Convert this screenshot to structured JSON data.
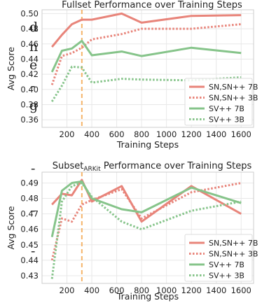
{
  "page_fragments": [
    "d",
    "n",
    "e",
    "-",
    "g",
    "-",
    "-",
    "-"
  ],
  "colors": {
    "salmon": "#e8847a",
    "green": "#86c48a",
    "marker": "#f5b46a",
    "grid": "#e8e8e8",
    "frame": "#cccccc"
  },
  "chart_data": [
    {
      "type": "line",
      "title": "Fullset Performance over Training Steps",
      "xlabel": "Training Steps",
      "ylabel": "Avg Score",
      "xlim": [
        0,
        1700
      ],
      "ylim": [
        0.35,
        0.505
      ],
      "xticks": [
        200,
        400,
        600,
        800,
        1000,
        1200,
        1400,
        1600
      ],
      "yticks": [
        0.36,
        0.38,
        0.4,
        0.42,
        0.44,
        0.46,
        0.48,
        0.5
      ],
      "grid": true,
      "legend_position": "bottom-right",
      "vline_x": 320,
      "series": [
        {
          "name": "SN,SN++ 7B",
          "color": "salmon",
          "style": "solid",
          "x": [
            80,
            160,
            240,
            320,
            400,
            640,
            800,
            1200,
            1600
          ],
          "y": [
            0.456,
            0.472,
            0.486,
            0.492,
            0.492,
            0.5,
            0.488,
            0.497,
            0.498
          ]
        },
        {
          "name": "SN,SN++ 3B",
          "color": "salmon",
          "style": "dotted",
          "x": [
            80,
            160,
            240,
            320,
            400,
            640,
            800,
            1200,
            1600
          ],
          "y": [
            0.406,
            0.444,
            0.448,
            0.455,
            0.466,
            0.473,
            0.48,
            0.48,
            0.486
          ]
        },
        {
          "name": "SV++ 7B",
          "color": "green",
          "style": "solid",
          "x": [
            80,
            160,
            240,
            320,
            400,
            640,
            800,
            1200,
            1600
          ],
          "y": [
            0.423,
            0.451,
            0.454,
            0.464,
            0.445,
            0.45,
            0.444,
            0.455,
            0.448
          ]
        },
        {
          "name": "SV++ 3B",
          "color": "green",
          "style": "dotted",
          "x": [
            80,
            160,
            240,
            320,
            400,
            640,
            800,
            1200,
            1600
          ],
          "y": [
            0.384,
            0.405,
            0.43,
            0.429,
            0.409,
            0.414,
            0.413,
            0.412,
            0.416
          ]
        }
      ]
    },
    {
      "type": "line",
      "title_main": "Subset",
      "title_sub": "ARKit",
      "title_rest": " Performance over Training Steps",
      "xlabel": "Training Steps",
      "ylabel": "Avg Score",
      "xlim": [
        0,
        1700
      ],
      "ylim": [
        0.425,
        0.497
      ],
      "xticks": [
        200,
        400,
        600,
        800,
        1000,
        1200,
        1400,
        1600
      ],
      "yticks": [
        0.43,
        0.44,
        0.45,
        0.46,
        0.47,
        0.48,
        0.49
      ],
      "grid": true,
      "legend_position": "bottom-right",
      "vline_x": 320,
      "series": [
        {
          "name": "SN,SN++ 7B",
          "color": "salmon",
          "style": "solid",
          "x": [
            80,
            160,
            240,
            320,
            400,
            640,
            800,
            1200,
            1600
          ],
          "y": [
            0.476,
            0.483,
            0.482,
            0.492,
            0.478,
            0.488,
            0.465,
            0.488,
            0.47
          ]
        },
        {
          "name": "SN,SN++ 3B",
          "color": "salmon",
          "style": "dotted",
          "x": [
            80,
            160,
            240,
            320,
            400,
            640,
            800,
            1200,
            1600
          ],
          "y": [
            0.44,
            0.467,
            0.465,
            0.476,
            0.479,
            0.486,
            0.467,
            0.484,
            0.49
          ]
        },
        {
          "name": "SV++ 7B",
          "color": "green",
          "style": "solid",
          "x": [
            80,
            160,
            240,
            320,
            400,
            640,
            800,
            1200,
            1600
          ],
          "y": [
            0.455,
            0.485,
            0.49,
            0.491,
            0.48,
            0.473,
            0.471,
            0.487,
            0.477
          ]
        },
        {
          "name": "SV++ 3B",
          "color": "green",
          "style": "dotted",
          "x": [
            80,
            160,
            240,
            320,
            400,
            640,
            800,
            1200,
            1600
          ],
          "y": [
            0.428,
            0.478,
            0.488,
            0.49,
            0.481,
            0.465,
            0.46,
            0.472,
            0.478
          ]
        }
      ]
    }
  ]
}
